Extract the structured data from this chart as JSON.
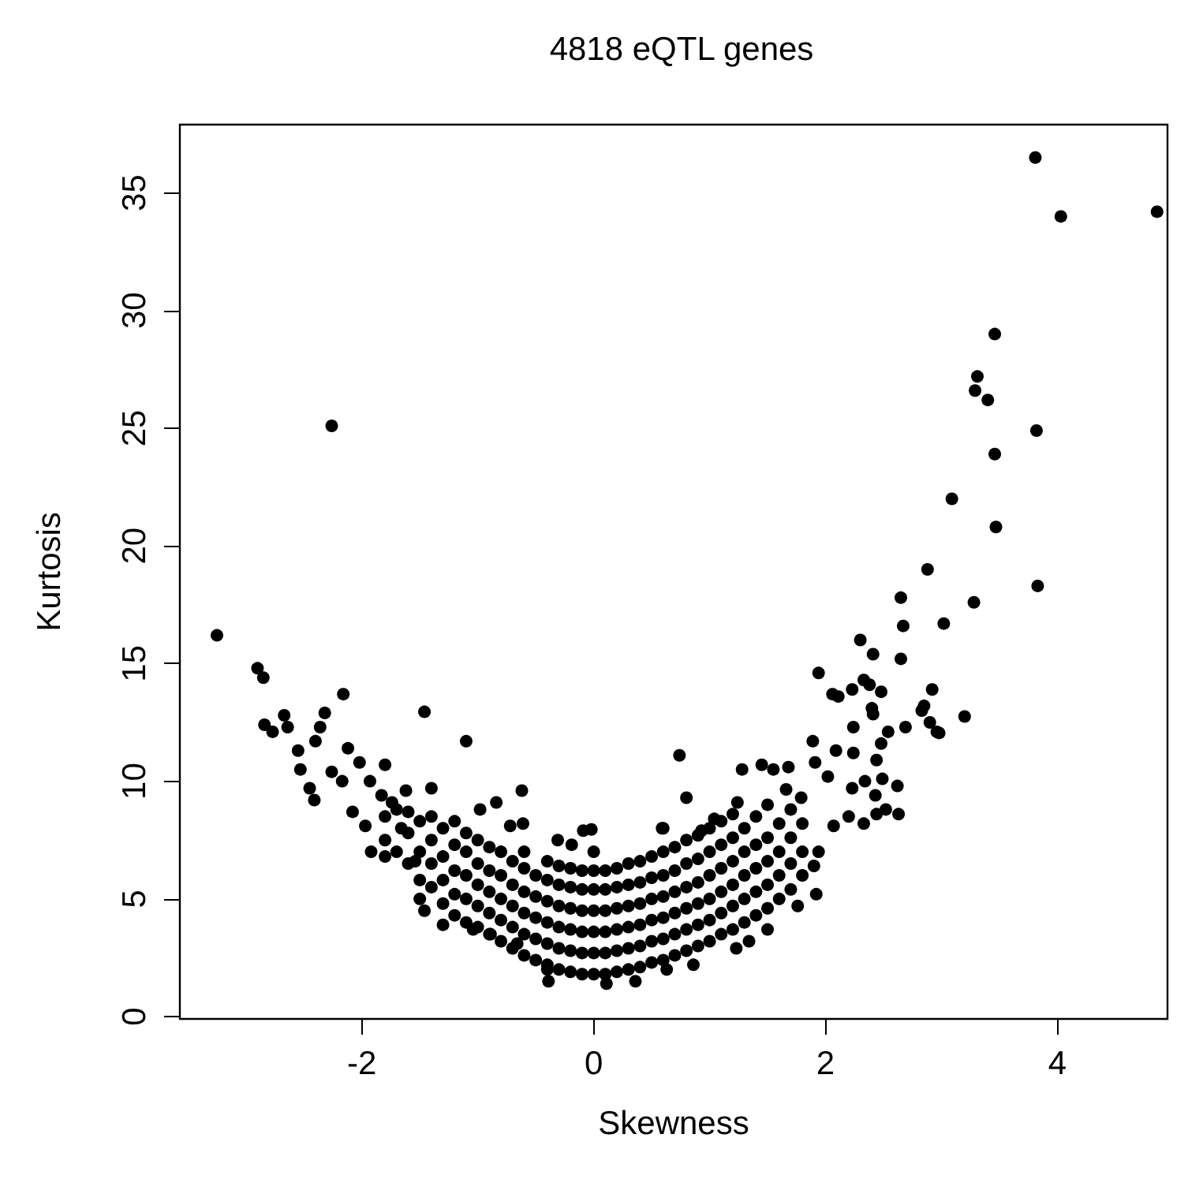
{
  "chart_data": {
    "type": "scatter",
    "title": "4818 eQTL genes",
    "xlabel": "Skewness",
    "ylabel": "Kurtosis",
    "xlim": [
      -3.57,
      4.95
    ],
    "ylim": [
      -0.1,
      37.9
    ],
    "xticks": [
      -2,
      0,
      2,
      4
    ],
    "yticks": [
      0,
      5,
      10,
      15,
      20,
      25,
      30,
      35
    ],
    "marker": "circle",
    "color": "#000000",
    "x": [
      -3.25,
      -2.26,
      -2.9,
      -2.85,
      -2.16,
      -1.46,
      -1.1,
      -2.84,
      -2.77,
      -2.67,
      -2.64,
      -2.32,
      -2.36,
      -2.4,
      -2.55,
      -2.53,
      -2.45,
      -2.41,
      -2.12,
      -2.26,
      -2.17,
      -2.02,
      -1.8,
      -1.93,
      -2.08,
      -1.97,
      -1.92,
      -1.8,
      -1.62,
      -1.4,
      -1.83,
      -1.74,
      -1.66,
      -1.54,
      -1.5,
      -1.46,
      -1.3,
      -0.98,
      -0.84,
      -0.62,
      -0.72,
      -0.61,
      -0.31,
      -0.19,
      -0.09,
      -0.02,
      -1.04,
      -0.89,
      -0.66,
      -0.4,
      -0.39,
      0.11,
      0.36,
      0.59,
      0.74,
      0.8,
      3.81,
      4.03,
      4.86,
      3.46,
      3.31,
      3.29,
      3.4,
      3.82,
      3.46,
      3.09,
      3.47,
      2.88,
      3.83,
      2.65,
      3.28,
      2.67,
      3.02,
      2.3,
      2.41,
      2.65,
      1.94,
      2.33,
      2.38,
      2.48,
      2.06,
      2.11,
      2.23,
      2.4,
      2.41,
      2.92,
      2.85,
      2.83,
      2.9,
      2.96,
      2.98,
      3.2,
      2.24,
      2.54,
      2.69,
      2.48,
      2.44,
      1.89,
      1.91,
      2.09,
      2.24,
      2.02,
      1.28,
      1.45,
      1.55,
      1.68,
      2.34,
      2.49,
      2.62,
      2.43,
      1.66,
      1.79,
      2.23,
      2.52,
      2.63,
      2.44,
      2.33,
      2.2,
      2.07,
      1.94,
      1.9,
      1.92,
      1.76,
      1.34,
      1.23,
      1.5,
      0.86,
      0.63,
      1.24,
      1.04,
      0.93,
      0.6,
      -1.8,
      -1.8,
      -1.7,
      -1.7,
      -1.6,
      -1.6,
      -1.6,
      -1.5,
      -1.5,
      -1.5,
      -1.4,
      -1.4,
      -1.4,
      -1.4,
      -1.3,
      -1.3,
      -1.3,
      -1.3,
      -1.2,
      -1.2,
      -1.2,
      -1.2,
      -1.2,
      -1.1,
      -1.1,
      -1.1,
      -1.1,
      -1.1,
      -1.0,
      -1.0,
      -1.0,
      -1.0,
      -1.0,
      -0.9,
      -0.9,
      -0.9,
      -0.9,
      -0.9,
      -0.8,
      -0.8,
      -0.8,
      -0.8,
      -0.8,
      -0.7,
      -0.7,
      -0.7,
      -0.7,
      -0.7,
      -0.6,
      -0.6,
      -0.6,
      -0.6,
      -0.6,
      -0.6,
      -0.5,
      -0.5,
      -0.5,
      -0.5,
      -0.5,
      -0.4,
      -0.4,
      -0.4,
      -0.4,
      -0.4,
      -0.4,
      -0.3,
      -0.3,
      -0.3,
      -0.3,
      -0.3,
      -0.3,
      -0.2,
      -0.2,
      -0.2,
      -0.2,
      -0.2,
      -0.2,
      -0.1,
      -0.1,
      -0.1,
      -0.1,
      -0.1,
      -0.1,
      0,
      0,
      0,
      0,
      0,
      0,
      0,
      0.1,
      0.1,
      0.1,
      0.1,
      0.1,
      0.1,
      0.2,
      0.2,
      0.2,
      0.2,
      0.2,
      0.2,
      0.3,
      0.3,
      0.3,
      0.3,
      0.3,
      0.3,
      0.4,
      0.4,
      0.4,
      0.4,
      0.4,
      0.4,
      0.5,
      0.5,
      0.5,
      0.5,
      0.5,
      0.5,
      0.6,
      0.6,
      0.6,
      0.6,
      0.6,
      0.6,
      0.7,
      0.7,
      0.7,
      0.7,
      0.7,
      0.7,
      0.8,
      0.8,
      0.8,
      0.8,
      0.8,
      0.8,
      0.9,
      0.9,
      0.9,
      0.9,
      0.9,
      0.9,
      1.0,
      1.0,
      1.0,
      1.0,
      1.0,
      1.0,
      1.1,
      1.1,
      1.1,
      1.1,
      1.1,
      1.1,
      1.2,
      1.2,
      1.2,
      1.2,
      1.2,
      1.2,
      1.3,
      1.3,
      1.3,
      1.3,
      1.3,
      1.4,
      1.4,
      1.4,
      1.4,
      1.4,
      1.5,
      1.5,
      1.5,
      1.5,
      1.5,
      1.6,
      1.6,
      1.6,
      1.6,
      1.7,
      1.7,
      1.7,
      1.7,
      1.8,
      1.8,
      1.8
    ],
    "values": [
      16.2,
      25.1,
      14.8,
      14.4,
      13.7,
      12.95,
      11.7,
      12.4,
      12.1,
      12.8,
      12.3,
      12.9,
      12.3,
      11.7,
      11.3,
      10.5,
      9.7,
      9.2,
      11.4,
      10.4,
      10,
      10.8,
      10.7,
      10,
      8.7,
      8.1,
      7,
      6.8,
      9.6,
      9.7,
      9.4,
      9.1,
      8,
      6.6,
      5,
      4.5,
      3.9,
      8.8,
      9.1,
      9.6,
      8.1,
      8.2,
      7.5,
      7.3,
      7.9,
      7.95,
      3.7,
      3.5,
      3.1,
      2,
      1.5,
      1.4,
      1.5,
      8,
      11.1,
      9.3,
      36.5,
      34,
      34.2,
      29,
      27.2,
      26.6,
      26.2,
      24.9,
      23.9,
      22,
      20.8,
      19,
      18.3,
      17.8,
      17.6,
      16.6,
      16.7,
      16,
      15.4,
      15.2,
      14.6,
      14.3,
      14.1,
      13.8,
      13.7,
      13.6,
      13.9,
      13.1,
      12.85,
      13.9,
      13.2,
      13,
      12.5,
      12.1,
      12.05,
      12.75,
      12.3,
      12.1,
      12.3,
      11.6,
      10.9,
      11.7,
      10.8,
      11.3,
      11.2,
      10.2,
      10.5,
      10.7,
      10.5,
      10.6,
      10,
      10.1,
      9.8,
      9.4,
      9.65,
      9.3,
      9.7,
      8.8,
      8.6,
      8.6,
      8.2,
      8.5,
      8.1,
      7,
      6.4,
      5.2,
      4.7,
      3.2,
      2.9,
      3.7,
      2.2,
      2,
      9.1,
      8.4,
      7.9,
      8,
      7.5,
      8.5,
      7,
      8.8,
      6.5,
      7.8,
      8.7,
      5.8,
      7,
      8.3,
      5.5,
      6.5,
      7.5,
      8.5,
      4.8,
      5.8,
      6.8,
      8,
      4.3,
      5.2,
      6.2,
      7.3,
      8.3,
      4,
      5,
      6,
      7,
      7.8,
      3.8,
      4.7,
      5.6,
      6.5,
      7.5,
      3.5,
      4.4,
      5.3,
      6.2,
      7.2,
      3.2,
      4.1,
      5,
      6,
      7,
      2.9,
      3.8,
      4.7,
      5.6,
      6.6,
      2.6,
      3.5,
      4.4,
      5.3,
      6.3,
      7,
      2.4,
      3.3,
      4.2,
      5.1,
      6,
      2.2,
      3.1,
      4,
      4.9,
      5.8,
      6.6,
      2,
      2.9,
      3.8,
      4.7,
      5.6,
      6.4,
      1.9,
      2.8,
      3.7,
      4.6,
      5.5,
      6.3,
      1.8,
      2.7,
      3.6,
      4.5,
      5.4,
      6.2,
      1.8,
      2.7,
      3.6,
      4.5,
      5.4,
      6.2,
      7,
      1.8,
      2.7,
      3.6,
      4.5,
      5.4,
      6.2,
      1.9,
      2.8,
      3.7,
      4.6,
      5.5,
      6.3,
      2,
      2.9,
      3.8,
      4.7,
      5.6,
      6.5,
      2.1,
      3,
      3.9,
      4.8,
      5.7,
      6.6,
      2.3,
      3.2,
      4.1,
      5,
      5.9,
      6.8,
      2.4,
      3.3,
      4.2,
      5.1,
      6,
      7,
      2.6,
      3.5,
      4.4,
      5.3,
      6.2,
      7.2,
      2.8,
      3.7,
      4.6,
      5.5,
      6.5,
      7.5,
      3,
      3.9,
      4.8,
      5.7,
      6.7,
      7.7,
      3.2,
      4.1,
      5,
      6,
      7,
      8,
      3.5,
      4.4,
      5.3,
      6.3,
      7.3,
      8.3,
      3.7,
      4.7,
      5.6,
      6.6,
      7.6,
      8.6,
      4,
      5,
      6,
      7,
      8,
      4.3,
      5.3,
      6.3,
      7.3,
      8.5,
      4.6,
      5.6,
      6.6,
      7.6,
      9,
      5,
      6,
      7,
      8.2,
      5.4,
      6.5,
      7.6,
      8.8,
      6,
      7,
      8.2
    ]
  }
}
